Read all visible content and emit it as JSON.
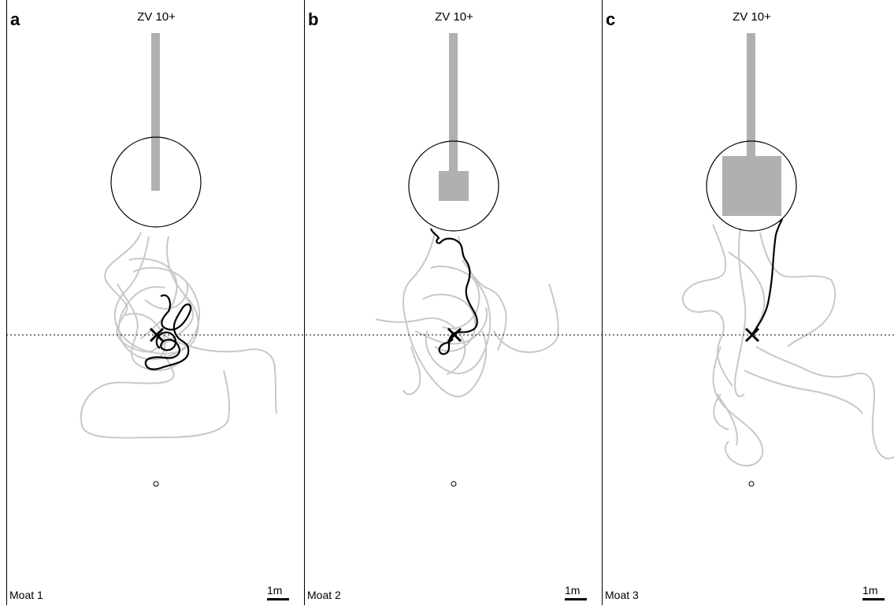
{
  "colors": {
    "background": "#ffffff",
    "gray_track": "#c8c8c8",
    "highlight_track": "#000000",
    "stimulus_bar": "#b0b0b0",
    "outline": "#000000"
  },
  "panels": [
    {
      "letter": "a",
      "title": "ZV 10+",
      "moat": "Moat 1",
      "scale": "1m",
      "stimulus_block": "none"
    },
    {
      "letter": "b",
      "title": "ZV 10+",
      "moat": "Moat 2",
      "scale": "1m",
      "stimulus_block": "small"
    },
    {
      "letter": "c",
      "title": "ZV 10+",
      "moat": "Moat 3",
      "scale": "1m",
      "stimulus_block": "large"
    }
  ]
}
